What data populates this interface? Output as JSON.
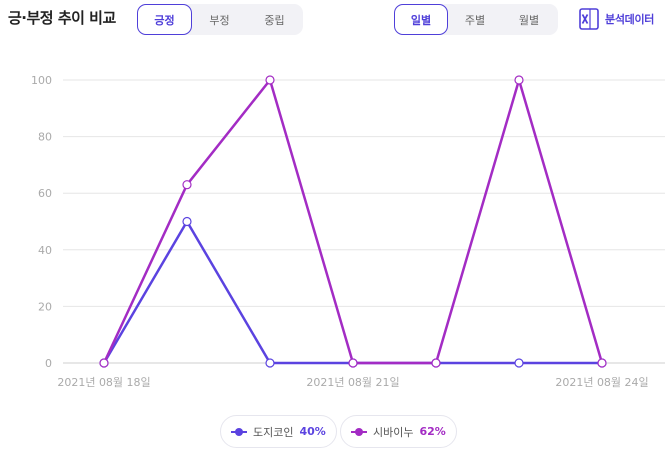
{
  "header": {
    "title": "긍·부정 추이 비교",
    "sentiment_tabs": [
      {
        "label": "긍정",
        "active": true
      },
      {
        "label": "부정",
        "active": false
      },
      {
        "label": "중립",
        "active": false
      }
    ],
    "period_tabs": [
      {
        "label": "일별",
        "active": true
      },
      {
        "label": "주별",
        "active": false
      },
      {
        "label": "월별",
        "active": false
      }
    ],
    "export": {
      "label": "분석데이터",
      "icon": "excel-icon"
    }
  },
  "legend": [
    {
      "name": "도지코인",
      "percent": "40%",
      "color": "#5b43e0"
    },
    {
      "name": "시바이누",
      "percent": "62%",
      "color": "#a32cc4"
    }
  ],
  "chart_data": {
    "type": "line",
    "x": [
      "2021-08-18",
      "2021-08-19",
      "2021-08-20",
      "2021-08-21",
      "2021-08-22",
      "2021-08-23",
      "2021-08-24"
    ],
    "x_tick_labels": [
      "2021년 08월 18일",
      "2021년 08월 21일",
      "2021년 08월 24일"
    ],
    "x_tick_positions": [
      0,
      3,
      6
    ],
    "ylim": [
      0,
      100
    ],
    "y_ticks": [
      0,
      20,
      40,
      60,
      80,
      100
    ],
    "grid": true,
    "legend_position": "bottom-center",
    "series": [
      {
        "name": "도지코인",
        "color": "#5b43e0",
        "values": [
          0,
          50,
          0,
          0,
          0,
          0,
          0
        ]
      },
      {
        "name": "시바이누",
        "color": "#a32cc4",
        "values": [
          0,
          63,
          100,
          0,
          0,
          100,
          0
        ]
      }
    ]
  }
}
